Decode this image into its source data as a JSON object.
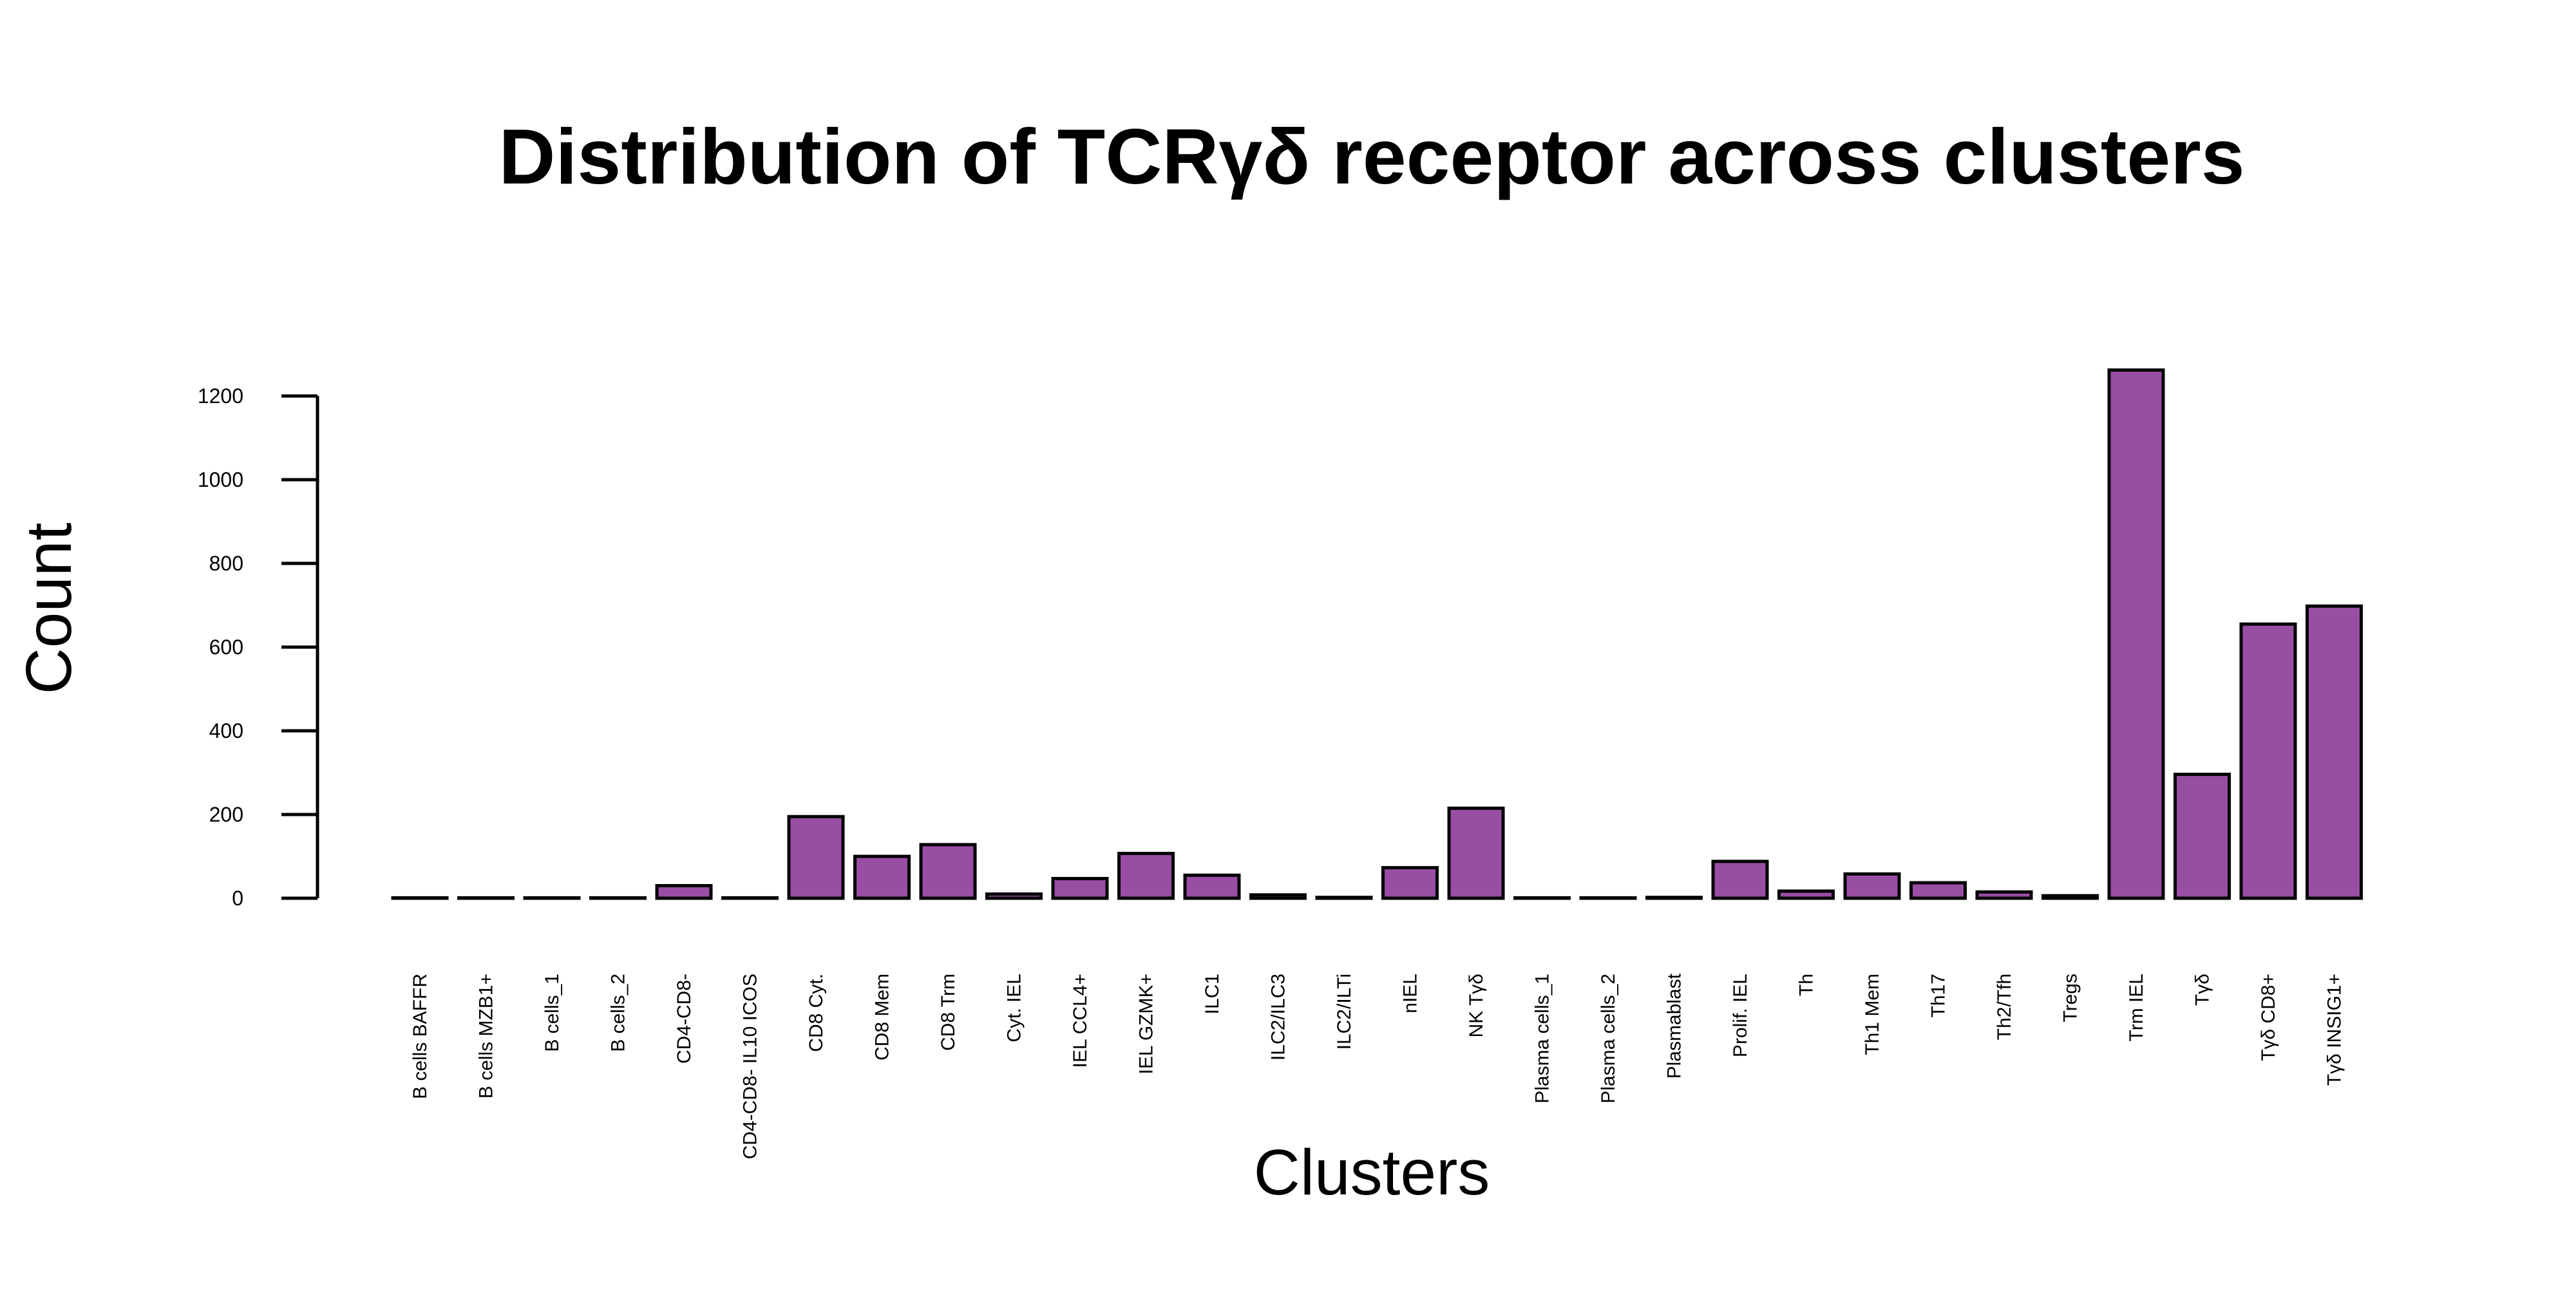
{
  "chart_data": {
    "type": "bar",
    "title": "Distribution of TCRγδ receptor across clusters",
    "xlabel": "Clusters",
    "ylabel": "Count",
    "ylim": [
      0,
      1200
    ],
    "yticks": [
      0,
      200,
      400,
      600,
      800,
      1000,
      1200
    ],
    "grid": false,
    "legend": "none",
    "bar_color": "#984EA3",
    "bar_edge_color": "#000000",
    "categories": [
      "B cells BAFFR",
      "B cells MZB1+",
      "B cells_1",
      "B cells_2",
      "CD4-CD8-",
      "CD4-CD8- IL10 ICOS",
      "CD8 Cyt.",
      "CD8 Mem",
      "CD8 Trm",
      "Cyt. IEL",
      "IEL CCL4+",
      "IEL GZMK+",
      "ILC1",
      "ILC2/ILC3",
      "ILC2/ILTi",
      "nIEL",
      "NK Tγδ",
      "Plasma cells_1",
      "Plasma cells_2",
      "Plasmablast",
      "Prolif. IEL",
      "Th",
      "Th1 Mem",
      "Th17",
      "Th2/Tfh",
      "Tregs",
      "Trm IEL",
      "Tγδ",
      "Tγδ CD8+",
      "Tγδ INSIG1+"
    ],
    "values": [
      1,
      1,
      1,
      1,
      30,
      1,
      195,
      100,
      128,
      10,
      47,
      107,
      55,
      8,
      2,
      73,
      215,
      1,
      1,
      2,
      88,
      17,
      58,
      37,
      15,
      6,
      1262,
      296,
      655,
      698
    ]
  }
}
